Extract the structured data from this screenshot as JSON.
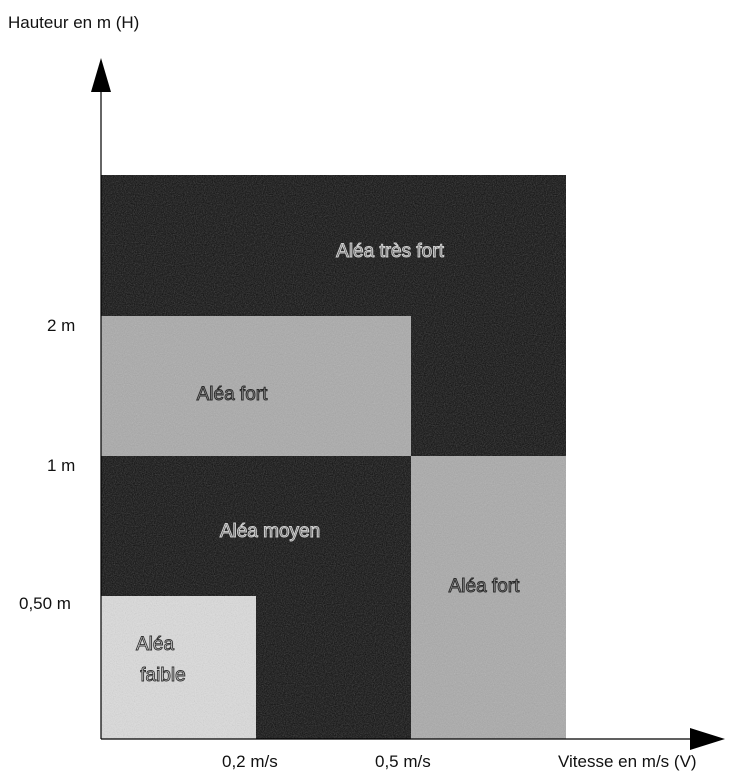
{
  "y_axis_title": "Hauteur en m (H)",
  "x_axis_title": "Vitesse en m/s (V)",
  "y_ticks": [
    "2 m",
    "1 m",
    "0,50 m"
  ],
  "x_ticks": [
    "0,2 m/s",
    "0,5 m/s"
  ],
  "zones": {
    "tres_fort": "Aléa très fort",
    "fort_left": "Aléa fort",
    "moyen": "Aléa moyen",
    "fort_right": "Aléa fort",
    "faible_line1": "Aléa",
    "faible_line2": "faible"
  },
  "colors": {
    "black_zone": "#0b0b0b",
    "fort_zone": "#a9a9a9",
    "faible_zone": "#dcdcdc",
    "axis": "#000000"
  }
}
